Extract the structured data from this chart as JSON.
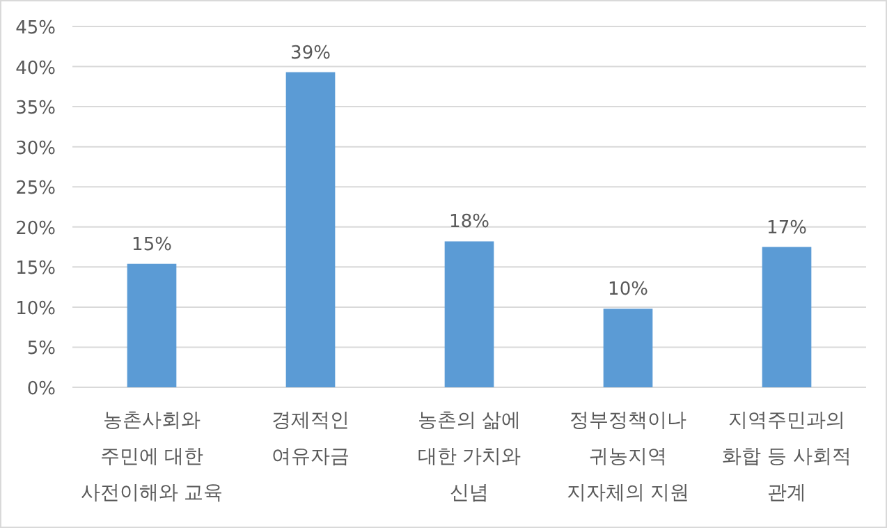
{
  "chart_data": {
    "type": "bar",
    "categories": [
      "농촌사회와\n주민에 대한\n사전이해와 교육",
      "경제적인\n여유자금",
      "농촌의 삶에\n대한 가치와\n신념",
      "정부정책이나\n귀농지역\n지자체의 지원",
      "지역주민과의\n화합 등 사회적\n관계"
    ],
    "values": [
      15.4,
      39.3,
      18.2,
      9.8,
      17.5
    ],
    "value_labels": [
      "15%",
      "39%",
      "18%",
      "10%",
      "17%"
    ],
    "color": "#5b9bd5",
    "ylim": [
      0,
      45
    ],
    "yticks": [
      {
        "value": 0,
        "label": "0%"
      },
      {
        "value": 5,
        "label": "5%"
      },
      {
        "value": 10,
        "label": "10%"
      },
      {
        "value": 15,
        "label": "15%"
      },
      {
        "value": 20,
        "label": "20%"
      },
      {
        "value": 25,
        "label": "25%"
      },
      {
        "value": 30,
        "label": "30%"
      },
      {
        "value": 35,
        "label": "35%"
      },
      {
        "value": 40,
        "label": "40%"
      },
      {
        "value": 45,
        "label": "45%"
      }
    ],
    "grid": "y"
  }
}
